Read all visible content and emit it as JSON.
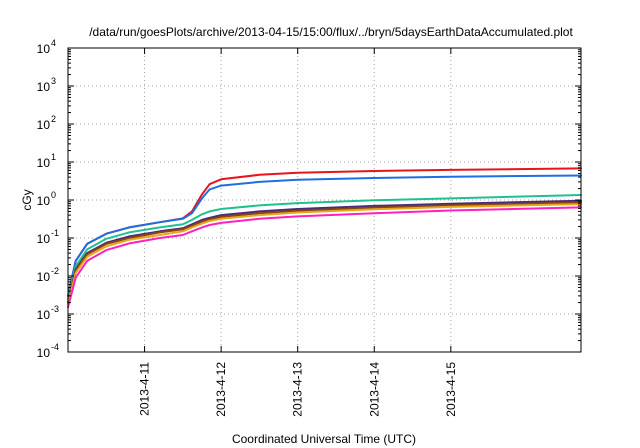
{
  "chart_data": {
    "type": "line",
    "title": "/data/run/goesPlots/archive/2013-04-15/15:00/flux/../bryn/5daysEarthDataAccumulated.plot",
    "xlabel": "Coordinated Universal Time (UTC)",
    "ylabel": "cGy",
    "y_scale": "log",
    "ylim_exponents": [
      -4,
      4
    ],
    "y_tick_base": "10",
    "y_tick_exponents": [
      "-4",
      "-3",
      "-2",
      "-1",
      "0",
      "1",
      "2",
      "3",
      "4"
    ],
    "xlim_days": [
      -1.0,
      5.7
    ],
    "x_ticks": [
      {
        "day": 0,
        "label": "2013-4-11"
      },
      {
        "day": 1,
        "label": "2013-4-12"
      },
      {
        "day": 2,
        "label": "2013-4-13"
      },
      {
        "day": 3,
        "label": "2013-4-14"
      },
      {
        "day": 4,
        "label": "2013-4-15"
      }
    ],
    "grid": true,
    "legend": "none",
    "series": [
      {
        "color": "#e8141c",
        "points": [
          [
            -1.0,
            0.003
          ],
          [
            -0.9,
            0.025
          ],
          [
            -0.75,
            0.07
          ],
          [
            -0.5,
            0.13
          ],
          [
            -0.2,
            0.19
          ],
          [
            0.2,
            0.26
          ],
          [
            0.5,
            0.33
          ],
          [
            0.62,
            0.5
          ],
          [
            0.75,
            1.4
          ],
          [
            0.85,
            2.6
          ],
          [
            1.0,
            3.5
          ],
          [
            1.5,
            4.6
          ],
          [
            2.0,
            5.2
          ],
          [
            3.0,
            5.8
          ],
          [
            4.0,
            6.2
          ],
          [
            5.7,
            6.8
          ]
        ]
      },
      {
        "color": "#1e6fe0",
        "points": [
          [
            -1.0,
            0.003
          ],
          [
            -0.9,
            0.025
          ],
          [
            -0.75,
            0.07
          ],
          [
            -0.5,
            0.13
          ],
          [
            -0.2,
            0.19
          ],
          [
            0.2,
            0.26
          ],
          [
            0.5,
            0.32
          ],
          [
            0.62,
            0.45
          ],
          [
            0.75,
            1.1
          ],
          [
            0.85,
            1.9
          ],
          [
            1.0,
            2.4
          ],
          [
            1.5,
            3.0
          ],
          [
            2.0,
            3.4
          ],
          [
            3.0,
            3.8
          ],
          [
            4.0,
            4.1
          ],
          [
            5.7,
            4.4
          ]
        ]
      },
      {
        "color": "#20c090",
        "points": [
          [
            -1.0,
            0.0025
          ],
          [
            -0.9,
            0.018
          ],
          [
            -0.75,
            0.05
          ],
          [
            -0.5,
            0.095
          ],
          [
            -0.2,
            0.14
          ],
          [
            0.2,
            0.19
          ],
          [
            0.5,
            0.23
          ],
          [
            0.62,
            0.3
          ],
          [
            0.75,
            0.42
          ],
          [
            0.85,
            0.5
          ],
          [
            1.0,
            0.58
          ],
          [
            1.5,
            0.72
          ],
          [
            2.0,
            0.83
          ],
          [
            3.0,
            0.98
          ],
          [
            4.0,
            1.1
          ],
          [
            5.7,
            1.35
          ]
        ]
      },
      {
        "color": "#4a2a7a",
        "points": [
          [
            -1.0,
            0.002
          ],
          [
            -0.9,
            0.015
          ],
          [
            -0.75,
            0.04
          ],
          [
            -0.5,
            0.075
          ],
          [
            -0.2,
            0.11
          ],
          [
            0.2,
            0.15
          ],
          [
            0.5,
            0.18
          ],
          [
            0.62,
            0.23
          ],
          [
            0.75,
            0.3
          ],
          [
            0.85,
            0.34
          ],
          [
            1.0,
            0.4
          ],
          [
            1.5,
            0.5
          ],
          [
            2.0,
            0.58
          ],
          [
            3.0,
            0.7
          ],
          [
            4.0,
            0.8
          ],
          [
            5.7,
            0.95
          ]
        ]
      },
      {
        "color": "#8b4513",
        "points": [
          [
            -1.0,
            0.002
          ],
          [
            -0.9,
            0.014
          ],
          [
            -0.75,
            0.037
          ],
          [
            -0.5,
            0.07
          ],
          [
            -0.2,
            0.1
          ],
          [
            0.2,
            0.14
          ],
          [
            0.5,
            0.17
          ],
          [
            0.62,
            0.21
          ],
          [
            0.75,
            0.27
          ],
          [
            0.85,
            0.31
          ],
          [
            1.0,
            0.36
          ],
          [
            1.5,
            0.45
          ],
          [
            2.0,
            0.52
          ],
          [
            3.0,
            0.63
          ],
          [
            4.0,
            0.72
          ],
          [
            5.7,
            0.86
          ]
        ]
      },
      {
        "color": "#e6a817",
        "points": [
          [
            -1.0,
            0.0018
          ],
          [
            -0.9,
            0.012
          ],
          [
            -0.75,
            0.032
          ],
          [
            -0.5,
            0.06
          ],
          [
            -0.2,
            0.09
          ],
          [
            0.2,
            0.12
          ],
          [
            0.5,
            0.15
          ],
          [
            0.62,
            0.19
          ],
          [
            0.75,
            0.24
          ],
          [
            0.85,
            0.28
          ],
          [
            1.0,
            0.32
          ],
          [
            1.5,
            0.4
          ],
          [
            2.0,
            0.47
          ],
          [
            3.0,
            0.57
          ],
          [
            4.0,
            0.66
          ],
          [
            5.7,
            0.78
          ]
        ]
      },
      {
        "color": "#ff20c0",
        "points": [
          [
            -1.0,
            0.0015
          ],
          [
            -0.9,
            0.009
          ],
          [
            -0.75,
            0.025
          ],
          [
            -0.5,
            0.048
          ],
          [
            -0.2,
            0.072
          ],
          [
            0.2,
            0.1
          ],
          [
            0.5,
            0.12
          ],
          [
            0.62,
            0.15
          ],
          [
            0.75,
            0.19
          ],
          [
            0.85,
            0.22
          ],
          [
            1.0,
            0.25
          ],
          [
            1.5,
            0.32
          ],
          [
            2.0,
            0.37
          ],
          [
            3.0,
            0.45
          ],
          [
            4.0,
            0.53
          ],
          [
            5.7,
            0.64
          ]
        ]
      }
    ]
  }
}
